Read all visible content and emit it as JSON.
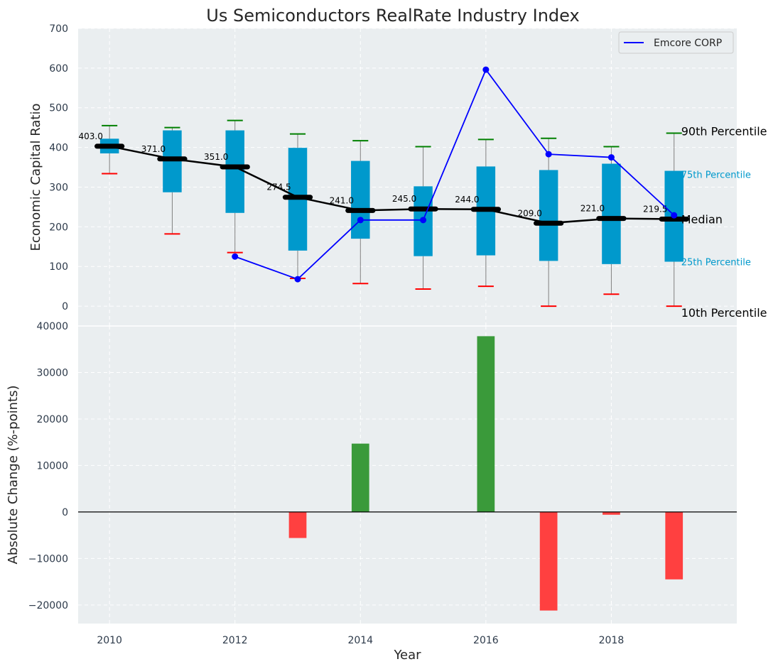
{
  "chart_data": {
    "title": "Us Semiconductors RealRate Industry Index",
    "top": {
      "type": "box",
      "ylabel": "Economic Capital Ratio",
      "ylim": [
        -50,
        700
      ],
      "yticks": [
        0,
        100,
        200,
        300,
        400,
        500,
        600,
        700
      ],
      "years": [
        2010,
        2011,
        2012,
        2013,
        2014,
        2015,
        2016,
        2017,
        2018,
        2019
      ],
      "p10": [
        334,
        182,
        135,
        70,
        57,
        43,
        50,
        0,
        30,
        0
      ],
      "p25": [
        385,
        287,
        235,
        140,
        170,
        126,
        128,
        114,
        106,
        112
      ],
      "median": [
        403.0,
        371.0,
        351.0,
        274.5,
        241.0,
        245.0,
        244.0,
        209.0,
        221.0,
        219.5
      ],
      "median_labels": [
        "403.0",
        "371.0",
        "351.0",
        "274.5",
        "241.0",
        "245.0",
        "244.0",
        "209.0",
        "221.0",
        "219.5"
      ],
      "p75": [
        422,
        443,
        443,
        399,
        366,
        302,
        352,
        343,
        359,
        341
      ],
      "p90": [
        455,
        450,
        468,
        434,
        417,
        402,
        420,
        423,
        402,
        436
      ],
      "company": {
        "name": "Emcore CORP",
        "years": [
          2012,
          2013,
          2014,
          2015,
          2016,
          2017,
          2018,
          2019
        ],
        "values": [
          125,
          68,
          217,
          217,
          596,
          383,
          375,
          229
        ]
      },
      "percentile_labels": {
        "p90": "90th Percentile",
        "p75": "75th Percentile",
        "median": "Median",
        "p25": "25th Percentile",
        "p10": "10th Percentile"
      },
      "colors": {
        "box": "#0099cc",
        "median": "#000000",
        "company": "#0000ff",
        "p90": "#008000",
        "p10": "#ff0000",
        "whisker": "#808080"
      }
    },
    "bottom": {
      "type": "bar",
      "xlabel": "Year",
      "ylabel": "Absolute Change (%-points)",
      "ylim": [
        -24000,
        40000
      ],
      "yticks": [
        -20000,
        -10000,
        0,
        10000,
        20000,
        30000,
        40000
      ],
      "ytick_labels": [
        "−20000",
        "−10000",
        "0",
        "10000",
        "20000",
        "30000",
        "40000"
      ],
      "years": [
        2013,
        2014,
        2016,
        2017,
        2018,
        2019
      ],
      "values": [
        -5600,
        14700,
        37800,
        -21200,
        -600,
        -14500
      ],
      "colors": {
        "positive": "#3a9a3a",
        "negative": "#ff4040"
      }
    },
    "xticks": [
      2010,
      2012,
      2014,
      2016,
      2018
    ]
  }
}
